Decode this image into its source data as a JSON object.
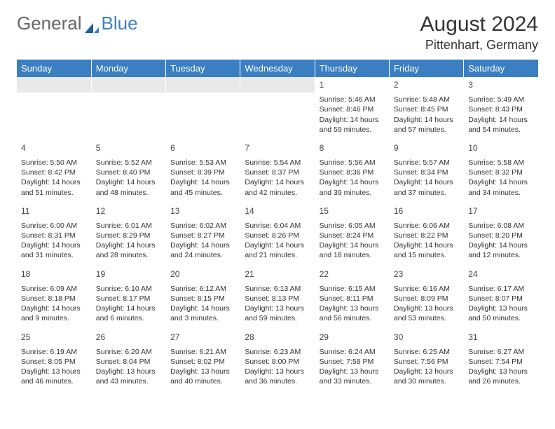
{
  "logo": {
    "text1": "General",
    "text2": "Blue"
  },
  "header": {
    "month": "August 2024",
    "location": "Pittenhart, Germany"
  },
  "colors": {
    "brand": "#3a7fc1",
    "daynum_bg": "#e9e9e9",
    "text": "#333333"
  },
  "weekdays": [
    "Sunday",
    "Monday",
    "Tuesday",
    "Wednesday",
    "Thursday",
    "Friday",
    "Saturday"
  ],
  "weeks": [
    [
      null,
      null,
      null,
      null,
      {
        "d": "1",
        "sr": "Sunrise: 5:46 AM",
        "ss": "Sunset: 8:46 PM",
        "dl1": "Daylight: 14 hours",
        "dl2": "and 59 minutes."
      },
      {
        "d": "2",
        "sr": "Sunrise: 5:48 AM",
        "ss": "Sunset: 8:45 PM",
        "dl1": "Daylight: 14 hours",
        "dl2": "and 57 minutes."
      },
      {
        "d": "3",
        "sr": "Sunrise: 5:49 AM",
        "ss": "Sunset: 8:43 PM",
        "dl1": "Daylight: 14 hours",
        "dl2": "and 54 minutes."
      }
    ],
    [
      {
        "d": "4",
        "sr": "Sunrise: 5:50 AM",
        "ss": "Sunset: 8:42 PM",
        "dl1": "Daylight: 14 hours",
        "dl2": "and 51 minutes."
      },
      {
        "d": "5",
        "sr": "Sunrise: 5:52 AM",
        "ss": "Sunset: 8:40 PM",
        "dl1": "Daylight: 14 hours",
        "dl2": "and 48 minutes."
      },
      {
        "d": "6",
        "sr": "Sunrise: 5:53 AM",
        "ss": "Sunset: 8:39 PM",
        "dl1": "Daylight: 14 hours",
        "dl2": "and 45 minutes."
      },
      {
        "d": "7",
        "sr": "Sunrise: 5:54 AM",
        "ss": "Sunset: 8:37 PM",
        "dl1": "Daylight: 14 hours",
        "dl2": "and 42 minutes."
      },
      {
        "d": "8",
        "sr": "Sunrise: 5:56 AM",
        "ss": "Sunset: 8:36 PM",
        "dl1": "Daylight: 14 hours",
        "dl2": "and 39 minutes."
      },
      {
        "d": "9",
        "sr": "Sunrise: 5:57 AM",
        "ss": "Sunset: 8:34 PM",
        "dl1": "Daylight: 14 hours",
        "dl2": "and 37 minutes."
      },
      {
        "d": "10",
        "sr": "Sunrise: 5:58 AM",
        "ss": "Sunset: 8:32 PM",
        "dl1": "Daylight: 14 hours",
        "dl2": "and 34 minutes."
      }
    ],
    [
      {
        "d": "11",
        "sr": "Sunrise: 6:00 AM",
        "ss": "Sunset: 8:31 PM",
        "dl1": "Daylight: 14 hours",
        "dl2": "and 31 minutes."
      },
      {
        "d": "12",
        "sr": "Sunrise: 6:01 AM",
        "ss": "Sunset: 8:29 PM",
        "dl1": "Daylight: 14 hours",
        "dl2": "and 28 minutes."
      },
      {
        "d": "13",
        "sr": "Sunrise: 6:02 AM",
        "ss": "Sunset: 8:27 PM",
        "dl1": "Daylight: 14 hours",
        "dl2": "and 24 minutes."
      },
      {
        "d": "14",
        "sr": "Sunrise: 6:04 AM",
        "ss": "Sunset: 8:26 PM",
        "dl1": "Daylight: 14 hours",
        "dl2": "and 21 minutes."
      },
      {
        "d": "15",
        "sr": "Sunrise: 6:05 AM",
        "ss": "Sunset: 8:24 PM",
        "dl1": "Daylight: 14 hours",
        "dl2": "and 18 minutes."
      },
      {
        "d": "16",
        "sr": "Sunrise: 6:06 AM",
        "ss": "Sunset: 8:22 PM",
        "dl1": "Daylight: 14 hours",
        "dl2": "and 15 minutes."
      },
      {
        "d": "17",
        "sr": "Sunrise: 6:08 AM",
        "ss": "Sunset: 8:20 PM",
        "dl1": "Daylight: 14 hours",
        "dl2": "and 12 minutes."
      }
    ],
    [
      {
        "d": "18",
        "sr": "Sunrise: 6:09 AM",
        "ss": "Sunset: 8:18 PM",
        "dl1": "Daylight: 14 hours",
        "dl2": "and 9 minutes."
      },
      {
        "d": "19",
        "sr": "Sunrise: 6:10 AM",
        "ss": "Sunset: 8:17 PM",
        "dl1": "Daylight: 14 hours",
        "dl2": "and 6 minutes."
      },
      {
        "d": "20",
        "sr": "Sunrise: 6:12 AM",
        "ss": "Sunset: 8:15 PM",
        "dl1": "Daylight: 14 hours",
        "dl2": "and 3 minutes."
      },
      {
        "d": "21",
        "sr": "Sunrise: 6:13 AM",
        "ss": "Sunset: 8:13 PM",
        "dl1": "Daylight: 13 hours",
        "dl2": "and 59 minutes."
      },
      {
        "d": "22",
        "sr": "Sunrise: 6:15 AM",
        "ss": "Sunset: 8:11 PM",
        "dl1": "Daylight: 13 hours",
        "dl2": "and 56 minutes."
      },
      {
        "d": "23",
        "sr": "Sunrise: 6:16 AM",
        "ss": "Sunset: 8:09 PM",
        "dl1": "Daylight: 13 hours",
        "dl2": "and 53 minutes."
      },
      {
        "d": "24",
        "sr": "Sunrise: 6:17 AM",
        "ss": "Sunset: 8:07 PM",
        "dl1": "Daylight: 13 hours",
        "dl2": "and 50 minutes."
      }
    ],
    [
      {
        "d": "25",
        "sr": "Sunrise: 6:19 AM",
        "ss": "Sunset: 8:05 PM",
        "dl1": "Daylight: 13 hours",
        "dl2": "and 46 minutes."
      },
      {
        "d": "26",
        "sr": "Sunrise: 6:20 AM",
        "ss": "Sunset: 8:04 PM",
        "dl1": "Daylight: 13 hours",
        "dl2": "and 43 minutes."
      },
      {
        "d": "27",
        "sr": "Sunrise: 6:21 AM",
        "ss": "Sunset: 8:02 PM",
        "dl1": "Daylight: 13 hours",
        "dl2": "and 40 minutes."
      },
      {
        "d": "28",
        "sr": "Sunrise: 6:23 AM",
        "ss": "Sunset: 8:00 PM",
        "dl1": "Daylight: 13 hours",
        "dl2": "and 36 minutes."
      },
      {
        "d": "29",
        "sr": "Sunrise: 6:24 AM",
        "ss": "Sunset: 7:58 PM",
        "dl1": "Daylight: 13 hours",
        "dl2": "and 33 minutes."
      },
      {
        "d": "30",
        "sr": "Sunrise: 6:25 AM",
        "ss": "Sunset: 7:56 PM",
        "dl1": "Daylight: 13 hours",
        "dl2": "and 30 minutes."
      },
      {
        "d": "31",
        "sr": "Sunrise: 6:27 AM",
        "ss": "Sunset: 7:54 PM",
        "dl1": "Daylight: 13 hours",
        "dl2": "and 26 minutes."
      }
    ]
  ]
}
